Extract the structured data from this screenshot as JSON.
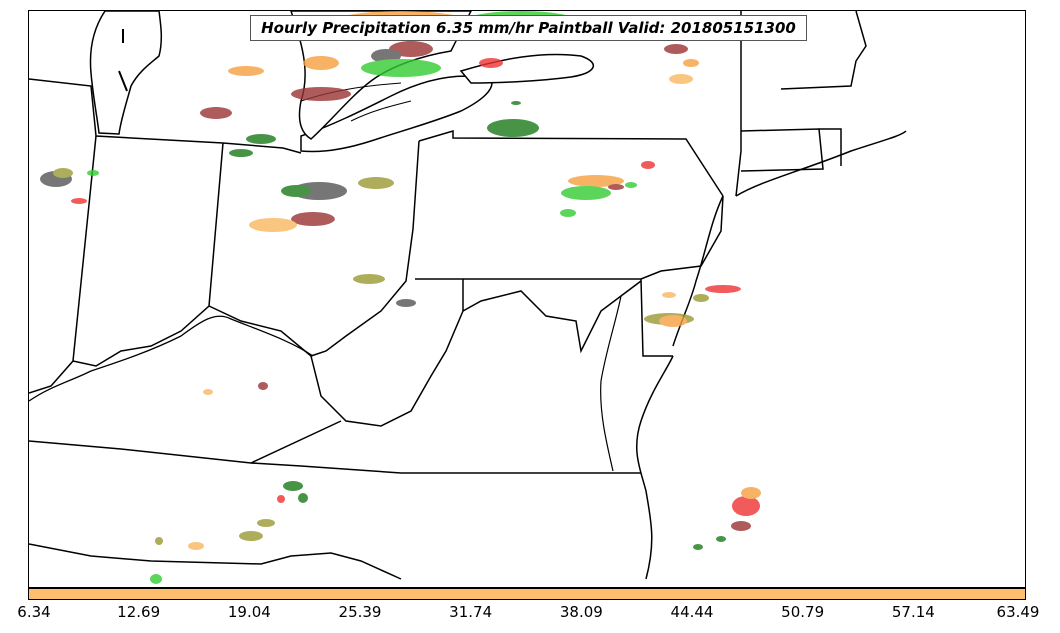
{
  "title": "Hourly Precipitation 6.35 mm/hr Paintball Valid: 201805151300",
  "colorbar": {
    "color": "#fdbf6f",
    "ticks": [
      "6.34",
      "12.69",
      "19.04",
      "25.39",
      "31.74",
      "38.09",
      "44.44",
      "50.79",
      "57.14",
      "63.49"
    ]
  },
  "colors": {
    "green": "#33cc33",
    "dark_green": "#1a7a1a",
    "orange": "#f7a040",
    "light_orange": "#f9b760",
    "red": "#ee3333",
    "dark_red": "#993333",
    "olive": "#999933",
    "gray": "#555555"
  }
}
